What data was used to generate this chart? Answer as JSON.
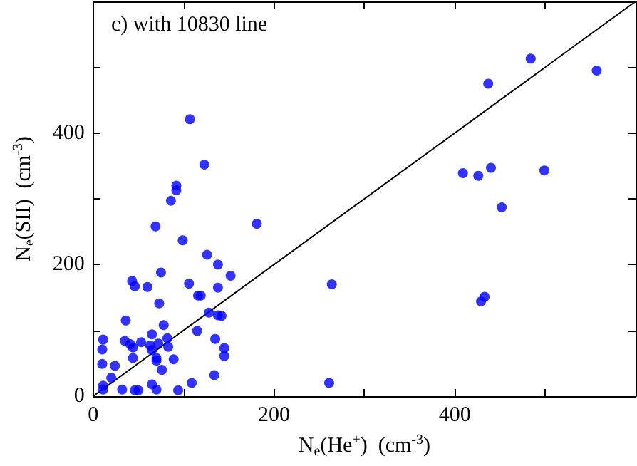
{
  "chart_data": {
    "type": "scatter",
    "xlabel": "N$_{e}$(He$^{+}$)  (cm$^{-3}$)",
    "ylabel": "N$_{e}$(SII)  (cm$^{-3}$)",
    "annotations": [
      "c) with 10830 line"
    ],
    "xlim": [
      0,
      600
    ],
    "ylim": [
      0,
      600
    ],
    "xticks": [
      0,
      {
        "value": 100,
        "label": null
      },
      200,
      {
        "value": 300,
        "label": null
      },
      400,
      {
        "value": 500,
        "label": null
      }
    ],
    "yticks": [
      0,
      {
        "value": 100,
        "label": null
      },
      200,
      {
        "value": 300,
        "label": null
      },
      400,
      {
        "value": 500,
        "label": null
      }
    ],
    "grid": false,
    "marker": "circle",
    "series": [
      {
        "color": "#0000ff",
        "x": [
          69,
          181,
          99,
          126,
          138,
          152,
          43,
          46,
          60,
          106,
          75,
          116,
          119,
          138,
          73,
          128,
          138,
          142,
          36,
          115,
          78,
          65,
          11,
          35,
          53,
          82,
          83,
          41,
          44,
          63,
          65,
          72,
          135,
          10,
          10,
          24,
          44,
          70,
          70,
          89,
          145,
          145,
          76,
          134,
          20,
          11,
          11,
          32,
          46,
          50,
          65,
          70,
          94,
          109,
          261,
          264,
          429,
          433,
          452,
          484,
          557,
          437,
          409,
          426,
          440,
          499,
          107,
          123,
          92,
          92,
          86
        ],
        "values": [
          258,
          262,
          237,
          215,
          200,
          183,
          175,
          167,
          166,
          171,
          188,
          153,
          153,
          165,
          141,
          127,
          123,
          122,
          115,
          99,
          108,
          94,
          86,
          84,
          82,
          88,
          75,
          79,
          74,
          77,
          70,
          80,
          87,
          71,
          49,
          46,
          58,
          58,
          54,
          56,
          73,
          61,
          40,
          32,
          28,
          16,
          10,
          10,
          9,
          9,
          18,
          10,
          9,
          20,
          20,
          170,
          144,
          151,
          287,
          513,
          495,
          475,
          339,
          335,
          347,
          343,
          421,
          352,
          320,
          313,
          297
        ]
      },
      {
        "type": "line",
        "color": "#000000",
        "marker": "none",
        "line_style": "solid",
        "x": [
          0,
          600
        ],
        "values": [
          0,
          600
        ]
      }
    ]
  }
}
